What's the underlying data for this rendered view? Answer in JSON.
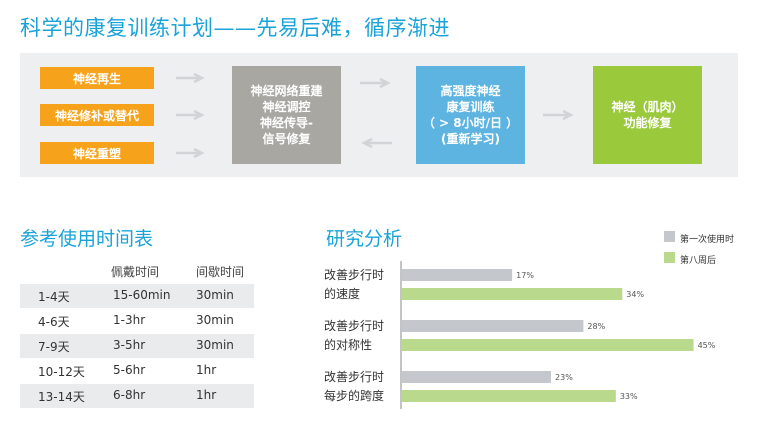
{
  "title": "科学的康复训练计划——先易后难，循序渐进",
  "flow": {
    "inputs": [
      "神经再生",
      "神经修补或替代",
      "神经重塑"
    ],
    "step1": [
      "神经网络重建",
      "神经调控",
      "神经传导-",
      "信号修复"
    ],
    "step2": [
      "高强度神经",
      "康复训练",
      "（ > 8小时/日 ）",
      "(重新学习)"
    ],
    "step3": [
      "神经（肌肉）",
      "功能修复"
    ],
    "colors": {
      "orange": "#f6a21b",
      "gray": "#a8a7a2",
      "blue": "#5eb4e0",
      "green": "#9bc93c"
    }
  },
  "schedule": {
    "title": "参考使用时间表",
    "headers": [
      "佩戴时间",
      "间歇时间"
    ],
    "rows": [
      [
        "1-4天",
        "15-60min",
        "30min"
      ],
      [
        "4-6天",
        "1-3hr",
        "30min"
      ],
      [
        "7-9天",
        "3-5hr",
        "30min"
      ],
      [
        "10-12天",
        "5-6hr",
        "1hr"
      ],
      [
        "13-14天",
        "6-8hr",
        "1hr"
      ]
    ]
  },
  "analysis_title": "研究分析",
  "chart_data": {
    "type": "bar",
    "orientation": "horizontal",
    "categories": [
      [
        "改善步行时",
        "的速度"
      ],
      [
        "改善步行时",
        "的对称性"
      ],
      [
        "改善步行时",
        "每步的跨度"
      ]
    ],
    "series": [
      {
        "name": "第一次使用时",
        "values": [
          17,
          28,
          23
        ],
        "labels": [
          "17%",
          "28%",
          "23%"
        ],
        "color": "#c4c7cc"
      },
      {
        "name": "第八周后",
        "values": [
          34,
          45,
          33
        ],
        "labels": [
          "34%",
          "45%",
          "33%"
        ],
        "color": "#b9d98c"
      }
    ],
    "xlim": [
      0,
      48
    ],
    "legend": "top-right",
    "grid": false
  }
}
